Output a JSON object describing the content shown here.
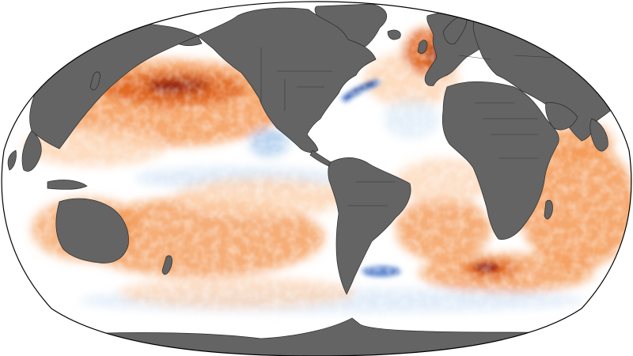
{
  "map": {
    "projection": "winkel-tripel",
    "layer": "sea-surface-temperature-anomaly",
    "colors": {
      "land": "#646464",
      "coastline": "#2a2a2a",
      "neutral_water": "#ffffff",
      "warm_light": "#fcd3b0",
      "warm": "#f49a55",
      "warm_strong": "#e0641c",
      "warm_extreme": "#8b1a0e",
      "cool_light": "#dbe9f7",
      "cool": "#9cc3ea",
      "cool_strong": "#3f6fc4",
      "cool_extreme": "#122f78"
    },
    "regions": [
      {
        "name": "north-pacific",
        "anomaly": "warm"
      },
      {
        "name": "northwest-pacific-kuroshio",
        "anomaly": "warm-extreme"
      },
      {
        "name": "eastern-equatorial-pacific",
        "anomaly": "cool"
      },
      {
        "name": "south-pacific",
        "anomaly": "warm"
      },
      {
        "name": "north-atlantic-gulf-stream",
        "anomaly": "cool-extreme"
      },
      {
        "name": "north-sea-baltic",
        "anomaly": "warm-extreme"
      },
      {
        "name": "south-atlantic",
        "anomaly": "warm"
      },
      {
        "name": "indian-ocean",
        "anomaly": "warm"
      },
      {
        "name": "southern-ocean",
        "anomaly": "cool"
      }
    ]
  }
}
